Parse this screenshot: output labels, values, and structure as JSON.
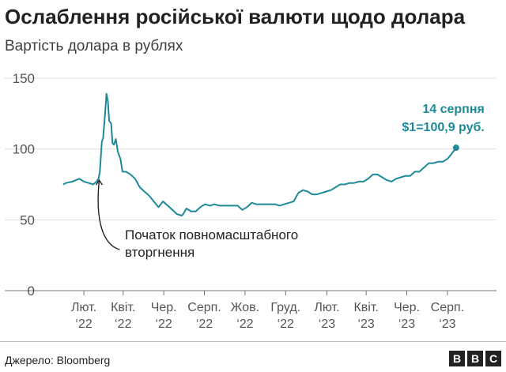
{
  "header": {
    "title": "Ослаблення російської валюти щодо долара",
    "subtitle": "Вартість долара в рублях"
  },
  "footer": {
    "source": "Джерело: Bloomberg",
    "logo_letters": [
      "B",
      "B",
      "C"
    ]
  },
  "chart_data": {
    "type": "line",
    "title": "Ослаблення російської валюти щодо долара",
    "subtitle": "Вартість долара в рублях",
    "ylim": [
      0,
      150
    ],
    "yticks": [
      0,
      50,
      100,
      150
    ],
    "grid": true,
    "line_color": "#1d8a99",
    "x_tick_labels": [
      [
        "Лют.",
        "‘22"
      ],
      [
        "Квіт.",
        "‘22"
      ],
      [
        "Чер.",
        "‘22"
      ],
      [
        "Серп.",
        "‘22"
      ],
      [
        "Жов.",
        "‘22"
      ],
      [
        "Груд.",
        "‘22"
      ],
      [
        "Лют.",
        "‘23"
      ],
      [
        "Квіт.",
        "‘23"
      ],
      [
        "Чер.",
        "‘23"
      ],
      [
        "Серп.",
        "‘23"
      ]
    ],
    "x_ticks": [
      "2022-02",
      "2022-04",
      "2022-06",
      "2022-08",
      "2022-10",
      "2022-12",
      "2023-02",
      "2023-04",
      "2023-06",
      "2023-08"
    ],
    "series": [
      {
        "points": [
          [
            "2022-01-01",
            75
          ],
          [
            "2022-01-05",
            76
          ],
          [
            "2022-01-10",
            76.5
          ],
          [
            "2022-01-15",
            77
          ],
          [
            "2022-01-20",
            78
          ],
          [
            "2022-01-25",
            79
          ],
          [
            "2022-02-01",
            77
          ],
          [
            "2022-02-08",
            76
          ],
          [
            "2022-02-15",
            75
          ],
          [
            "2022-02-20",
            77
          ],
          [
            "2022-02-23",
            79
          ],
          [
            "2022-02-25",
            84
          ],
          [
            "2022-02-28",
            105
          ],
          [
            "2022-03-02",
            108
          ],
          [
            "2022-03-04",
            120
          ],
          [
            "2022-03-07",
            139
          ],
          [
            "2022-03-09",
            134
          ],
          [
            "2022-03-11",
            120
          ],
          [
            "2022-03-14",
            118
          ],
          [
            "2022-03-16",
            104
          ],
          [
            "2022-03-18",
            103
          ],
          [
            "2022-03-21",
            107
          ],
          [
            "2022-03-24",
            98
          ],
          [
            "2022-03-28",
            93
          ],
          [
            "2022-03-31",
            84
          ],
          [
            "2022-04-05",
            84
          ],
          [
            "2022-04-12",
            82
          ],
          [
            "2022-04-19",
            79
          ],
          [
            "2022-04-26",
            73
          ],
          [
            "2022-05-03",
            70
          ],
          [
            "2022-05-10",
            67
          ],
          [
            "2022-05-17",
            63
          ],
          [
            "2022-05-24",
            59
          ],
          [
            "2022-05-31",
            63
          ],
          [
            "2022-06-07",
            60
          ],
          [
            "2022-06-14",
            57
          ],
          [
            "2022-06-21",
            54
          ],
          [
            "2022-06-28",
            53
          ],
          [
            "2022-06-30",
            54
          ],
          [
            "2022-07-05",
            58
          ],
          [
            "2022-07-12",
            56
          ],
          [
            "2022-07-19",
            56
          ],
          [
            "2022-07-26",
            59
          ],
          [
            "2022-08-02",
            61
          ],
          [
            "2022-08-09",
            60
          ],
          [
            "2022-08-16",
            61
          ],
          [
            "2022-08-23",
            60
          ],
          [
            "2022-08-30",
            60
          ],
          [
            "2022-09-06",
            60
          ],
          [
            "2022-09-13",
            60
          ],
          [
            "2022-09-20",
            60
          ],
          [
            "2022-09-27",
            57
          ],
          [
            "2022-10-04",
            59
          ],
          [
            "2022-10-11",
            62
          ],
          [
            "2022-10-18",
            61
          ],
          [
            "2022-10-25",
            61
          ],
          [
            "2022-11-01",
            61
          ],
          [
            "2022-11-08",
            61
          ],
          [
            "2022-11-15",
            61
          ],
          [
            "2022-11-22",
            60
          ],
          [
            "2022-11-29",
            61
          ],
          [
            "2022-12-06",
            62
          ],
          [
            "2022-12-13",
            63
          ],
          [
            "2022-12-20",
            69
          ],
          [
            "2022-12-27",
            71
          ],
          [
            "2023-01-03",
            70
          ],
          [
            "2023-01-10",
            68
          ],
          [
            "2023-01-17",
            68
          ],
          [
            "2023-01-24",
            69
          ],
          [
            "2023-01-31",
            70
          ],
          [
            "2023-02-07",
            71
          ],
          [
            "2023-02-14",
            73
          ],
          [
            "2023-02-21",
            75
          ],
          [
            "2023-02-28",
            75
          ],
          [
            "2023-03-07",
            76
          ],
          [
            "2023-03-14",
            76
          ],
          [
            "2023-03-21",
            77
          ],
          [
            "2023-03-28",
            77
          ],
          [
            "2023-04-04",
            79
          ],
          [
            "2023-04-11",
            82
          ],
          [
            "2023-04-18",
            82
          ],
          [
            "2023-04-25",
            80
          ],
          [
            "2023-05-02",
            78
          ],
          [
            "2023-05-09",
            77
          ],
          [
            "2023-05-16",
            79
          ],
          [
            "2023-05-23",
            80
          ],
          [
            "2023-05-30",
            81
          ],
          [
            "2023-06-06",
            81
          ],
          [
            "2023-06-13",
            84
          ],
          [
            "2023-06-20",
            84
          ],
          [
            "2023-06-27",
            87
          ],
          [
            "2023-07-04",
            90
          ],
          [
            "2023-07-11",
            90
          ],
          [
            "2023-07-18",
            91
          ],
          [
            "2023-07-25",
            91
          ],
          [
            "2023-08-01",
            93
          ],
          [
            "2023-08-08",
            97
          ],
          [
            "2023-08-14",
            100.9
          ]
        ]
      }
    ],
    "annotations": [
      {
        "lines": [
          "Початок повномасштабного",
          "вторгнення"
        ],
        "target": [
          "2022-02-24",
          78
        ]
      },
      {
        "lines": [
          "14 серпня",
          "$1=100,9 руб."
        ],
        "target": [
          "2023-08-14",
          100.9
        ]
      }
    ]
  }
}
